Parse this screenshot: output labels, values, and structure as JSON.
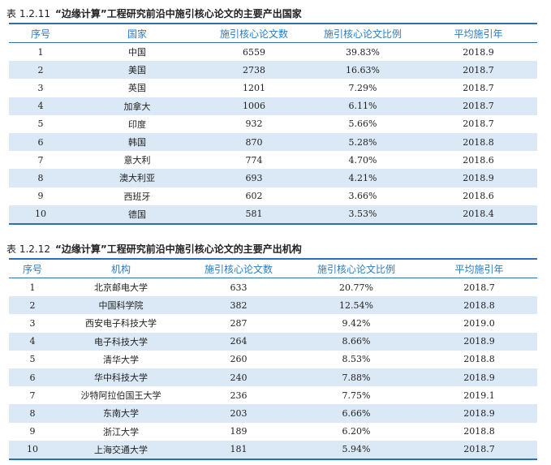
{
  "table1": {
    "number": "表 1.2.11",
    "title": "“边缘计算”工程研究前沿中施引核心论文的主要产出国家",
    "headers": [
      "序号",
      "国家",
      "施引核心论文数",
      "施引核心论文比例",
      "平均施引年"
    ],
    "rows": [
      [
        "1",
        "中国",
        "6559",
        "39.83%",
        "2018.9"
      ],
      [
        "2",
        "美国",
        "2738",
        "16.63%",
        "2018.7"
      ],
      [
        "3",
        "英国",
        "1201",
        "7.29%",
        "2018.7"
      ],
      [
        "4",
        "加拿大",
        "1006",
        "6.11%",
        "2018.7"
      ],
      [
        "5",
        "印度",
        "932",
        "5.66%",
        "2018.7"
      ],
      [
        "6",
        "韩国",
        "870",
        "5.28%",
        "2018.8"
      ],
      [
        "7",
        "意大利",
        "774",
        "4.70%",
        "2018.6"
      ],
      [
        "8",
        "澳大利亚",
        "693",
        "4.21%",
        "2018.9"
      ],
      [
        "9",
        "西班牙",
        "602",
        "3.66%",
        "2018.6"
      ],
      [
        "10",
        "德国",
        "581",
        "3.53%",
        "2018.4"
      ]
    ]
  },
  "table2": {
    "number": "表 1.2.12",
    "title": "“边缘计算”工程研究前沿中施引核心论文的主要产出机构",
    "headers": [
      "序号",
      "机构",
      "施引核心论文数",
      "施引核心论文比例",
      "平均施引年"
    ],
    "rows": [
      [
        "1",
        "北京邮电大学",
        "633",
        "20.77%",
        "2018.7"
      ],
      [
        "2",
        "中国科学院",
        "382",
        "12.54%",
        "2018.8"
      ],
      [
        "3",
        "西安电子科技大学",
        "287",
        "9.42%",
        "2019.0"
      ],
      [
        "4",
        "电子科技大学",
        "264",
        "8.66%",
        "2018.9"
      ],
      [
        "5",
        "清华大学",
        "260",
        "8.53%",
        "2018.8"
      ],
      [
        "6",
        "华中科技大学",
        "240",
        "7.88%",
        "2018.9"
      ],
      [
        "7",
        "沙特阿拉伯国王大学",
        "236",
        "7.75%",
        "2019.1"
      ],
      [
        "8",
        "东南大学",
        "203",
        "6.66%",
        "2018.9"
      ],
      [
        "9",
        "浙江大学",
        "189",
        "6.20%",
        "2018.8"
      ],
      [
        "10",
        "上海交通大学",
        "181",
        "5.94%",
        "2018.7"
      ]
    ]
  }
}
